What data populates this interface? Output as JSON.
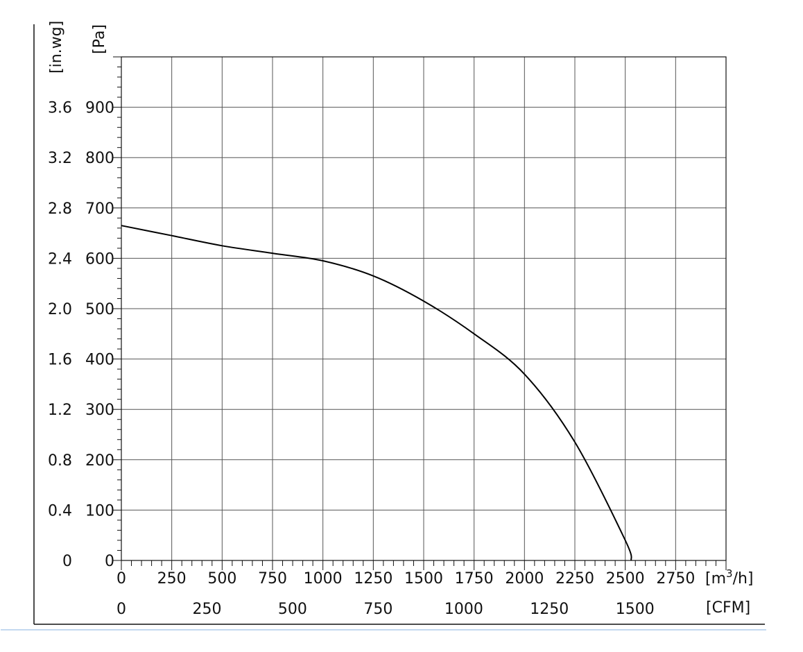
{
  "chart_data": {
    "type": "line",
    "title": "",
    "x_axis": {
      "unit_label_base": "[m",
      "unit_label_sup": "3",
      "unit_label_tail": "/h]",
      "xlim": [
        0,
        3000
      ],
      "ticks": [
        0,
        250,
        500,
        750,
        1000,
        1250,
        1500,
        1750,
        2000,
        2250,
        2500,
        2750
      ],
      "tick_labels": [
        "0",
        "250",
        "500",
        "750",
        "1000",
        "1250",
        "1500",
        "1750",
        "2000",
        "2250",
        "2500",
        "2750"
      ]
    },
    "x2_axis": {
      "unit_label": "[CFM]",
      "conversion_factor_m3h_per_cfm": 1.699,
      "ticks": [
        0,
        250,
        500,
        750,
        1000,
        1250,
        1500
      ],
      "tick_labels": [
        "0",
        "250",
        "500",
        "750",
        "1000",
        "1250",
        "1500"
      ]
    },
    "y_axis": {
      "unit_label": "[Pa]",
      "ylim": [
        0,
        1000
      ],
      "ticks": [
        0,
        100,
        200,
        300,
        400,
        500,
        600,
        700,
        800,
        900
      ],
      "tick_labels": [
        "0",
        "100",
        "200",
        "300",
        "400",
        "500",
        "600",
        "700",
        "800",
        "900"
      ]
    },
    "y2_axis": {
      "unit_label": "[in.wg]",
      "ticks": [
        0,
        0.4,
        0.8,
        1.2,
        1.6,
        2.0,
        2.4,
        2.8,
        3.2,
        3.6
      ],
      "tick_labels": [
        "0",
        "0.4",
        "0.8",
        "1.2",
        "1.6",
        "2.0",
        "2.4",
        "2.8",
        "3.2",
        "3.6"
      ]
    },
    "grid": true,
    "series": [
      {
        "x": [
          0,
          250,
          500,
          750,
          1000,
          1250,
          1500,
          1750,
          2000,
          2250,
          2500,
          2530
        ],
        "y": [
          665,
          645,
          625,
          610,
          595,
          565,
          515,
          450,
          370,
          235,
          40,
          0
        ]
      }
    ]
  }
}
